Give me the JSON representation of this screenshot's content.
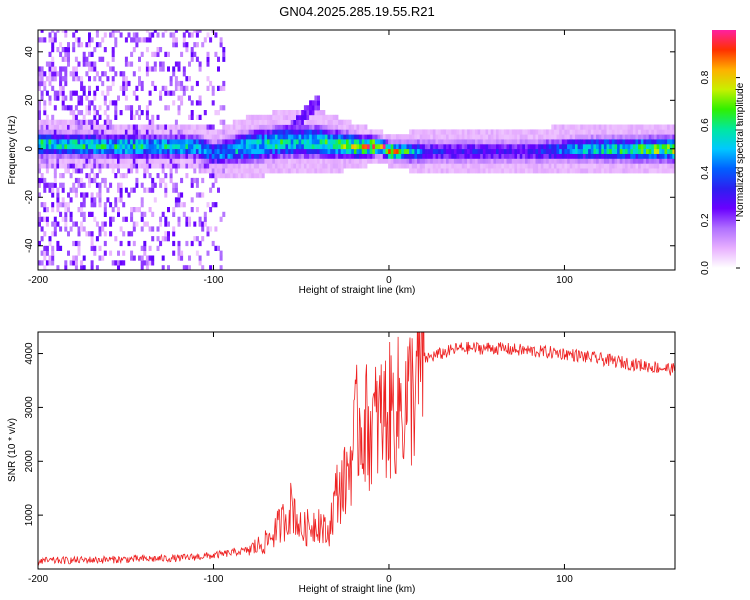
{
  "title": "GN04.2025.285.19.55.R21",
  "colors": {
    "snr_line": "#ee2222",
    "colormap": [
      "#ffffff",
      "#e8b0ff",
      "#b070ff",
      "#6a00ff",
      "#2d1ff0",
      "#0060ff",
      "#00c8ff",
      "#00e8a0",
      "#30f000",
      "#c8f000",
      "#ffb000",
      "#ff3000",
      "#ff20a0"
    ]
  },
  "chart_data": [
    {
      "type": "heatmap",
      "name": "spectrogram",
      "xlabel": "Height of straight line (km)",
      "ylabel": "Frequency (Hz)",
      "xlim": [
        -200,
        163
      ],
      "ylim": [
        -50,
        49
      ],
      "xticks": [
        "-200",
        "-100",
        "0",
        "100"
      ],
      "xtick_values": [
        -200,
        -100,
        0,
        100
      ],
      "yticks": [
        "-40",
        "-20",
        "0",
        "20",
        "40"
      ],
      "ytick_values": [
        -40,
        -20,
        0,
        20,
        40
      ],
      "colorbar": {
        "label": "Normalized spectral amplitude",
        "range": [
          0,
          1
        ],
        "ticks": [
          "0.0",
          "0.2",
          "0.4",
          "0.6",
          "0.8"
        ],
        "tick_values": [
          0.0,
          0.2,
          0.4,
          0.6,
          0.8
        ]
      },
      "ridge_profile": [
        {
          "x": -200,
          "freq": 2,
          "half_width": 3,
          "peak": 0.55
        },
        {
          "x": -150,
          "freq": 1,
          "half_width": 3,
          "peak": 0.55
        },
        {
          "x": -110,
          "freq": 1,
          "half_width": 3,
          "peak": 0.5
        },
        {
          "x": -100,
          "freq": -2,
          "half_width": 3,
          "peak": 0.45
        },
        {
          "x": -80,
          "freq": 1,
          "half_width": 4,
          "peak": 0.55
        },
        {
          "x": -60,
          "freq": 3,
          "half_width": 4,
          "peak": 0.55
        },
        {
          "x": -40,
          "freq": 3,
          "half_width": 4,
          "peak": 0.55
        },
        {
          "x": -20,
          "freq": 1,
          "half_width": 3,
          "peak": 0.7
        },
        {
          "x": -5,
          "freq": 1,
          "half_width": 2,
          "peak": 0.9
        },
        {
          "x": 0,
          "freq": -1,
          "half_width": 2,
          "peak": 0.85
        },
        {
          "x": 20,
          "freq": -1,
          "half_width": 3,
          "peak": 0.3
        },
        {
          "x": 80,
          "freq": -1,
          "half_width": 3,
          "peak": 0.3
        },
        {
          "x": 110,
          "freq": 0,
          "half_width": 3,
          "peak": 0.5
        },
        {
          "x": 163,
          "freq": 0,
          "half_width": 3,
          "peak": 0.7
        }
      ],
      "noise_region_x": [
        -200,
        -95
      ],
      "branch_segment": {
        "x": [
          -60,
          -40
        ],
        "freq": [
          5,
          19
        ]
      }
    },
    {
      "type": "line",
      "name": "snr",
      "xlabel": "Height of straight line (km)",
      "ylabel": "SNR (10 * v/v)",
      "xlim": [
        -200,
        163
      ],
      "ylim": [
        0,
        4400
      ],
      "xticks": [
        "-200",
        "-100",
        "0",
        "100"
      ],
      "xtick_values": [
        -200,
        -100,
        0,
        100
      ],
      "yticks": [
        "1000",
        "2000",
        "3000",
        "4000"
      ],
      "ytick_values": [
        1000,
        2000,
        3000,
        4000
      ],
      "series": [
        {
          "name": "SNR",
          "x": [
            -200,
            -150,
            -120,
            -100,
            -80,
            -70,
            -60,
            -55,
            -50,
            -40,
            -35,
            -30,
            -25,
            -20,
            -18,
            -15,
            -10,
            -5,
            0,
            5,
            10,
            15,
            20,
            30,
            40,
            60,
            80,
            100,
            120,
            140,
            163
          ],
          "values": [
            150,
            180,
            200,
            250,
            350,
            500,
            900,
            1200,
            700,
            900,
            600,
            1400,
            1600,
            2300,
            2700,
            2700,
            2600,
            2800,
            2900,
            3000,
            3100,
            3400,
            3900,
            4000,
            4100,
            4100,
            4050,
            4000,
            3900,
            3800,
            3700
          ]
        }
      ]
    }
  ]
}
